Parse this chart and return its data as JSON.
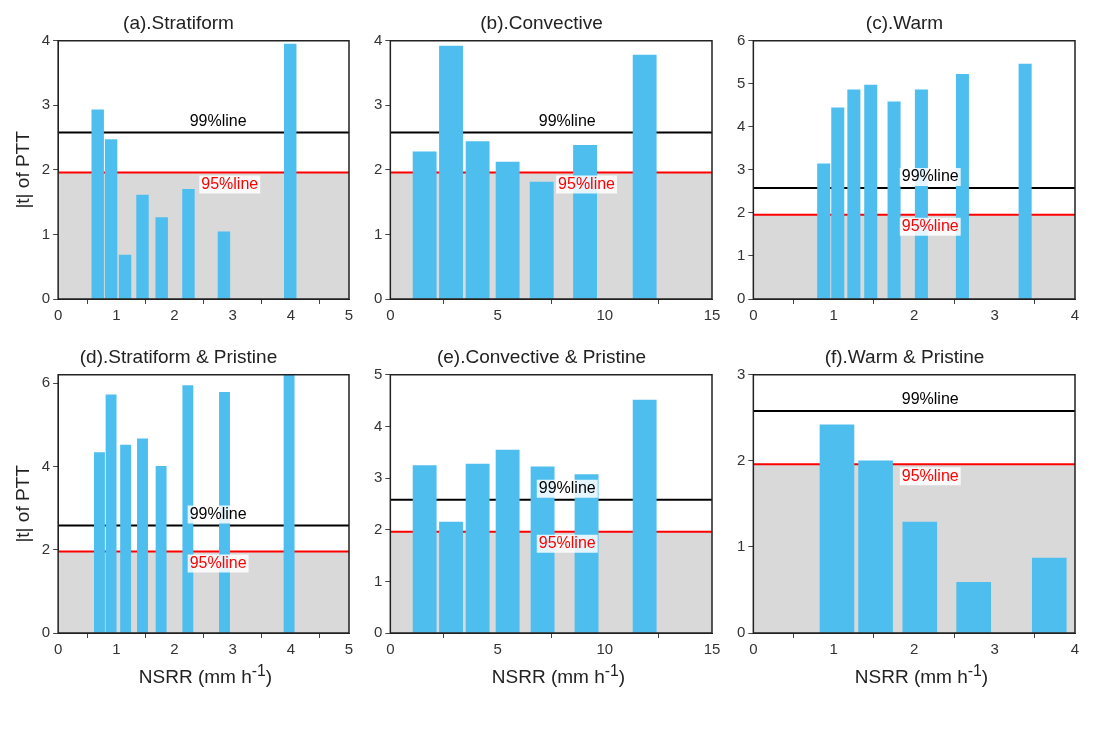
{
  "chart_data": [
    {
      "type": "bar",
      "title": "(a).Stratiform",
      "ylabel": "|t| of PTT",
      "color": "#4dbeee",
      "x": [
        0.68,
        0.91,
        1.15,
        1.45,
        1.78,
        2.24,
        2.85,
        3.99
      ],
      "values": [
        2.93,
        2.47,
        0.68,
        1.61,
        1.26,
        1.7,
        1.04,
        3.95
      ],
      "xlim": [
        0,
        5
      ],
      "xticks": [
        0,
        1,
        2,
        3,
        4,
        5
      ],
      "ylim": [
        0,
        4
      ],
      "yticks": [
        0,
        1,
        2,
        3,
        4
      ],
      "bands": [
        {
          "axis": "y",
          "from": 0,
          "to": 1.96,
          "color": "#d9d9d9"
        }
      ],
      "ref_lines": [
        {
          "axis": "y",
          "value": 2.58,
          "label": "99%line",
          "color": "#000000"
        },
        {
          "axis": "y",
          "value": 1.96,
          "label": "95%line",
          "color": "#ff0000"
        }
      ]
    },
    {
      "type": "bar",
      "title": "(b).Convective",
      "color": "#4dbeee",
      "x": [
        1.6,
        2.83,
        4.07,
        5.47,
        7.06,
        9.08,
        11.86
      ],
      "values": [
        2.28,
        3.92,
        2.44,
        2.12,
        1.81,
        2.38,
        3.78
      ],
      "xlim": [
        0,
        15
      ],
      "xticks": [
        0,
        5,
        10,
        15
      ],
      "ylim": [
        0,
        4
      ],
      "yticks": [
        0,
        1,
        2,
        3,
        4
      ],
      "bands": [
        {
          "axis": "y",
          "from": 0,
          "to": 1.96,
          "color": "#d9d9d9"
        }
      ],
      "ref_lines": [
        {
          "axis": "y",
          "value": 2.58,
          "label": "99%line",
          "color": "#000000"
        },
        {
          "axis": "y",
          "value": 1.96,
          "label": "95%line",
          "color": "#ff0000"
        }
      ]
    },
    {
      "type": "bar",
      "title": "(c).Warm",
      "color": "#4dbeee",
      "x": [
        0.875,
        1.05,
        1.25,
        1.46,
        1.75,
        2.09,
        2.6,
        3.38
      ],
      "values": [
        3.14,
        4.44,
        4.86,
        4.97,
        4.58,
        4.86,
        5.22,
        5.46
      ],
      "xlim": [
        0,
        4
      ],
      "xticks": [
        0,
        1,
        2,
        3,
        4
      ],
      "ylim": [
        0,
        6
      ],
      "yticks": [
        0,
        1,
        2,
        3,
        4,
        5,
        6
      ],
      "bands": [
        {
          "axis": "y",
          "from": 0,
          "to": 1.96,
          "color": "#d9d9d9"
        }
      ],
      "ref_lines": [
        {
          "axis": "y",
          "value": 2.58,
          "label": "99%line",
          "color": "#000000"
        },
        {
          "axis": "y",
          "value": 1.96,
          "label": "95%line",
          "color": "#ff0000"
        }
      ]
    },
    {
      "type": "bar",
      "title": "(d).Stratiform & Pristine",
      "xlabel": "NSRR (mm h$^{-1}$)",
      "ylabel": "|t| of PTT",
      "color": "#4dbeee",
      "x": [
        0.71,
        0.91,
        1.16,
        1.45,
        1.77,
        2.23,
        2.86,
        3.97
      ],
      "values": [
        4.33,
        5.72,
        4.51,
        4.66,
        4.0,
        5.94,
        5.78,
        6.2
      ],
      "xlim": [
        0,
        5
      ],
      "xticks": [
        0,
        1,
        2,
        3,
        4,
        5
      ],
      "ylim": [
        0,
        6.2
      ],
      "yticks": [
        0,
        2,
        4,
        6
      ],
      "bands": [
        {
          "axis": "y",
          "from": 0,
          "to": 1.96,
          "color": "#d9d9d9"
        }
      ],
      "ref_lines": [
        {
          "axis": "y",
          "value": 2.58,
          "label": "99%line",
          "color": "#000000"
        },
        {
          "axis": "y",
          "value": 1.96,
          "label": "95%line",
          "color": "#ff0000"
        }
      ]
    },
    {
      "type": "bar",
      "title": "(e).Convective & Pristine",
      "xlabel": "NSRR (mm h$^{-1}$)",
      "color": "#4dbeee",
      "x": [
        1.6,
        2.83,
        4.07,
        5.47,
        7.1,
        9.15,
        11.86
      ],
      "values": [
        3.24,
        2.15,
        3.27,
        3.54,
        3.22,
        3.07,
        4.51
      ],
      "xlim": [
        0,
        15
      ],
      "xticks": [
        0,
        5,
        10,
        15
      ],
      "ylim": [
        0,
        5
      ],
      "yticks": [
        0,
        1,
        2,
        3,
        4,
        5
      ],
      "bands": [
        {
          "axis": "y",
          "from": 0,
          "to": 1.96,
          "color": "#d9d9d9"
        }
      ],
      "ref_lines": [
        {
          "axis": "y",
          "value": 2.58,
          "label": "99%line",
          "color": "#000000"
        },
        {
          "axis": "y",
          "value": 1.96,
          "label": "95%line",
          "color": "#ff0000"
        }
      ]
    },
    {
      "type": "bar",
      "title": "(f).Warm & Pristine",
      "xlabel": "NSRR (mm h$^{-1}$)",
      "color": "#4dbeee",
      "x": [
        1.04,
        1.52,
        2.07,
        2.74,
        3.68
      ],
      "values": [
        2.42,
        2.0,
        1.29,
        0.59,
        0.87
      ],
      "xlim": [
        0,
        4
      ],
      "xticks": [
        0,
        1,
        2,
        3,
        4
      ],
      "ylim": [
        0,
        3
      ],
      "yticks": [
        0,
        1,
        2,
        3
      ],
      "bands": [
        {
          "axis": "y",
          "from": 0,
          "to": 1.96,
          "color": "#d9d9d9"
        }
      ],
      "ref_lines": [
        {
          "axis": "y",
          "value": 2.58,
          "label": "99%line",
          "color": "#000000"
        },
        {
          "axis": "y",
          "value": 1.96,
          "label": "95%line",
          "color": "#ff0000"
        }
      ]
    }
  ]
}
